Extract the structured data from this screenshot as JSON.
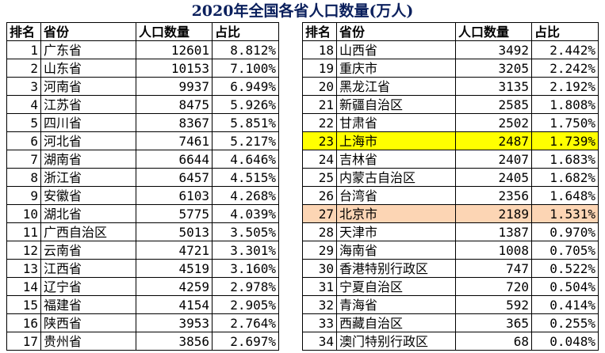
{
  "title": "2020年全国各省人口数量(万人)",
  "headers": {
    "rank": "排名",
    "province": "省份",
    "population": "人口数量",
    "share": "占比"
  },
  "colors": {
    "highlight_shanghai": "#ffff00",
    "highlight_beijing": "#fcd5b4"
  },
  "left_rows": [
    {
      "rank": "1",
      "province": "广东省",
      "population": "12601",
      "share": "8.812%"
    },
    {
      "rank": "2",
      "province": "山东省",
      "population": "10153",
      "share": "7.100%"
    },
    {
      "rank": "3",
      "province": "河南省",
      "population": "9937",
      "share": "6.949%"
    },
    {
      "rank": "4",
      "province": "江苏省",
      "population": "8475",
      "share": "5.926%"
    },
    {
      "rank": "5",
      "province": "四川省",
      "population": "8367",
      "share": "5.851%"
    },
    {
      "rank": "6",
      "province": "河北省",
      "population": "7461",
      "share": "5.217%"
    },
    {
      "rank": "7",
      "province": "湖南省",
      "population": "6644",
      "share": "4.646%"
    },
    {
      "rank": "8",
      "province": "浙江省",
      "population": "6457",
      "share": "4.515%"
    },
    {
      "rank": "9",
      "province": "安徽省",
      "population": "6103",
      "share": "4.268%"
    },
    {
      "rank": "10",
      "province": "湖北省",
      "population": "5775",
      "share": "4.039%"
    },
    {
      "rank": "11",
      "province": "广西自治区",
      "population": "5013",
      "share": "3.505%"
    },
    {
      "rank": "12",
      "province": "云南省",
      "population": "4721",
      "share": "3.301%"
    },
    {
      "rank": "13",
      "province": "江西省",
      "population": "4519",
      "share": "3.160%"
    },
    {
      "rank": "14",
      "province": "辽宁省",
      "population": "4259",
      "share": "2.978%"
    },
    {
      "rank": "15",
      "province": "福建省",
      "population": "4154",
      "share": "2.905%"
    },
    {
      "rank": "16",
      "province": "陕西省",
      "population": "3953",
      "share": "2.764%"
    },
    {
      "rank": "17",
      "province": "贵州省",
      "population": "3856",
      "share": "2.697%"
    }
  ],
  "right_rows": [
    {
      "rank": "18",
      "province": "山西省",
      "population": "3492",
      "share": "2.442%",
      "highlight": ""
    },
    {
      "rank": "19",
      "province": "重庆市",
      "population": "3205",
      "share": "2.242%",
      "highlight": ""
    },
    {
      "rank": "20",
      "province": "黑龙江省",
      "population": "3135",
      "share": "2.192%",
      "highlight": ""
    },
    {
      "rank": "21",
      "province": "新疆自治区",
      "population": "2585",
      "share": "1.808%",
      "highlight": ""
    },
    {
      "rank": "22",
      "province": "甘肃省",
      "population": "2502",
      "share": "1.750%",
      "highlight": ""
    },
    {
      "rank": "23",
      "province": "上海市",
      "population": "2487",
      "share": "1.739%",
      "highlight": "#ffff00"
    },
    {
      "rank": "24",
      "province": "吉林省",
      "population": "2407",
      "share": "1.683%",
      "highlight": ""
    },
    {
      "rank": "25",
      "province": "内蒙古自治区",
      "population": "2405",
      "share": "1.682%",
      "highlight": ""
    },
    {
      "rank": "26",
      "province": "台湾省",
      "population": "2356",
      "share": "1.648%",
      "highlight": ""
    },
    {
      "rank": "27",
      "province": "北京市",
      "population": "2189",
      "share": "1.531%",
      "highlight": "#fcd5b4"
    },
    {
      "rank": "28",
      "province": "天津市",
      "population": "1387",
      "share": "0.970%",
      "highlight": ""
    },
    {
      "rank": "29",
      "province": "海南省",
      "population": "1008",
      "share": "0.705%",
      "highlight": ""
    },
    {
      "rank": "30",
      "province": "香港特别行政区",
      "population": "747",
      "share": "0.522%",
      "highlight": ""
    },
    {
      "rank": "31",
      "province": "宁夏自治区",
      "population": "720",
      "share": "0.504%",
      "highlight": ""
    },
    {
      "rank": "32",
      "province": "青海省",
      "population": "592",
      "share": "0.414%",
      "highlight": ""
    },
    {
      "rank": "33",
      "province": "西藏自治区",
      "population": "365",
      "share": "0.255%",
      "highlight": ""
    },
    {
      "rank": "34",
      "province": "澳门特别行政区",
      "population": "68",
      "share": "0.048%",
      "highlight": ""
    }
  ]
}
